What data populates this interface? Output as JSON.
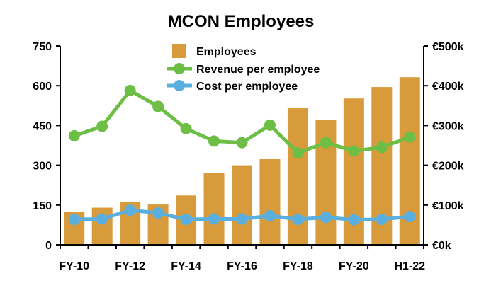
{
  "chart_data": {
    "type": "bar",
    "title": "MCON Employees",
    "categories": [
      "FY-10",
      "FY-11",
      "FY-12",
      "FY-13",
      "FY-14",
      "FY-15",
      "FY-16",
      "FY-17",
      "FY-18",
      "FY-19",
      "FY-20",
      "FY-21",
      "H1-22"
    ],
    "x_tick_labels": [
      "FY-10",
      "FY-12",
      "FY-14",
      "FY-16",
      "FY-18",
      "FY-20",
      "H1-22"
    ],
    "y_left": {
      "range": [
        0,
        750
      ],
      "ticks": [
        "0",
        "150",
        "300",
        "450",
        "600",
        "750"
      ]
    },
    "y_right": {
      "range": [
        0,
        500000
      ],
      "ticks": [
        "€0k",
        "€100k",
        "€200k",
        "€300k",
        "€400k",
        "€500k"
      ]
    },
    "legend_position": "top-center",
    "grid": false,
    "series": [
      {
        "name": "Employees",
        "type": "bar",
        "axis": "left",
        "color": "#D89B3C",
        "values": [
          124,
          140,
          162,
          152,
          186,
          270,
          300,
          323,
          515,
          472,
          552,
          595,
          632
        ]
      },
      {
        "name": "Revenue per employee",
        "type": "line",
        "axis": "right",
        "color": "#6CBE45",
        "values": [
          274000,
          298000,
          388000,
          348000,
          292000,
          261000,
          257000,
          301000,
          231000,
          257000,
          236000,
          245000,
          271000
        ]
      },
      {
        "name": "Cost per employee",
        "type": "line",
        "axis": "right",
        "color": "#5AAFDF",
        "values": [
          64000,
          65000,
          87000,
          80000,
          64000,
          65000,
          65000,
          73000,
          64000,
          69000,
          63000,
          64000,
          71000
        ]
      }
    ]
  }
}
